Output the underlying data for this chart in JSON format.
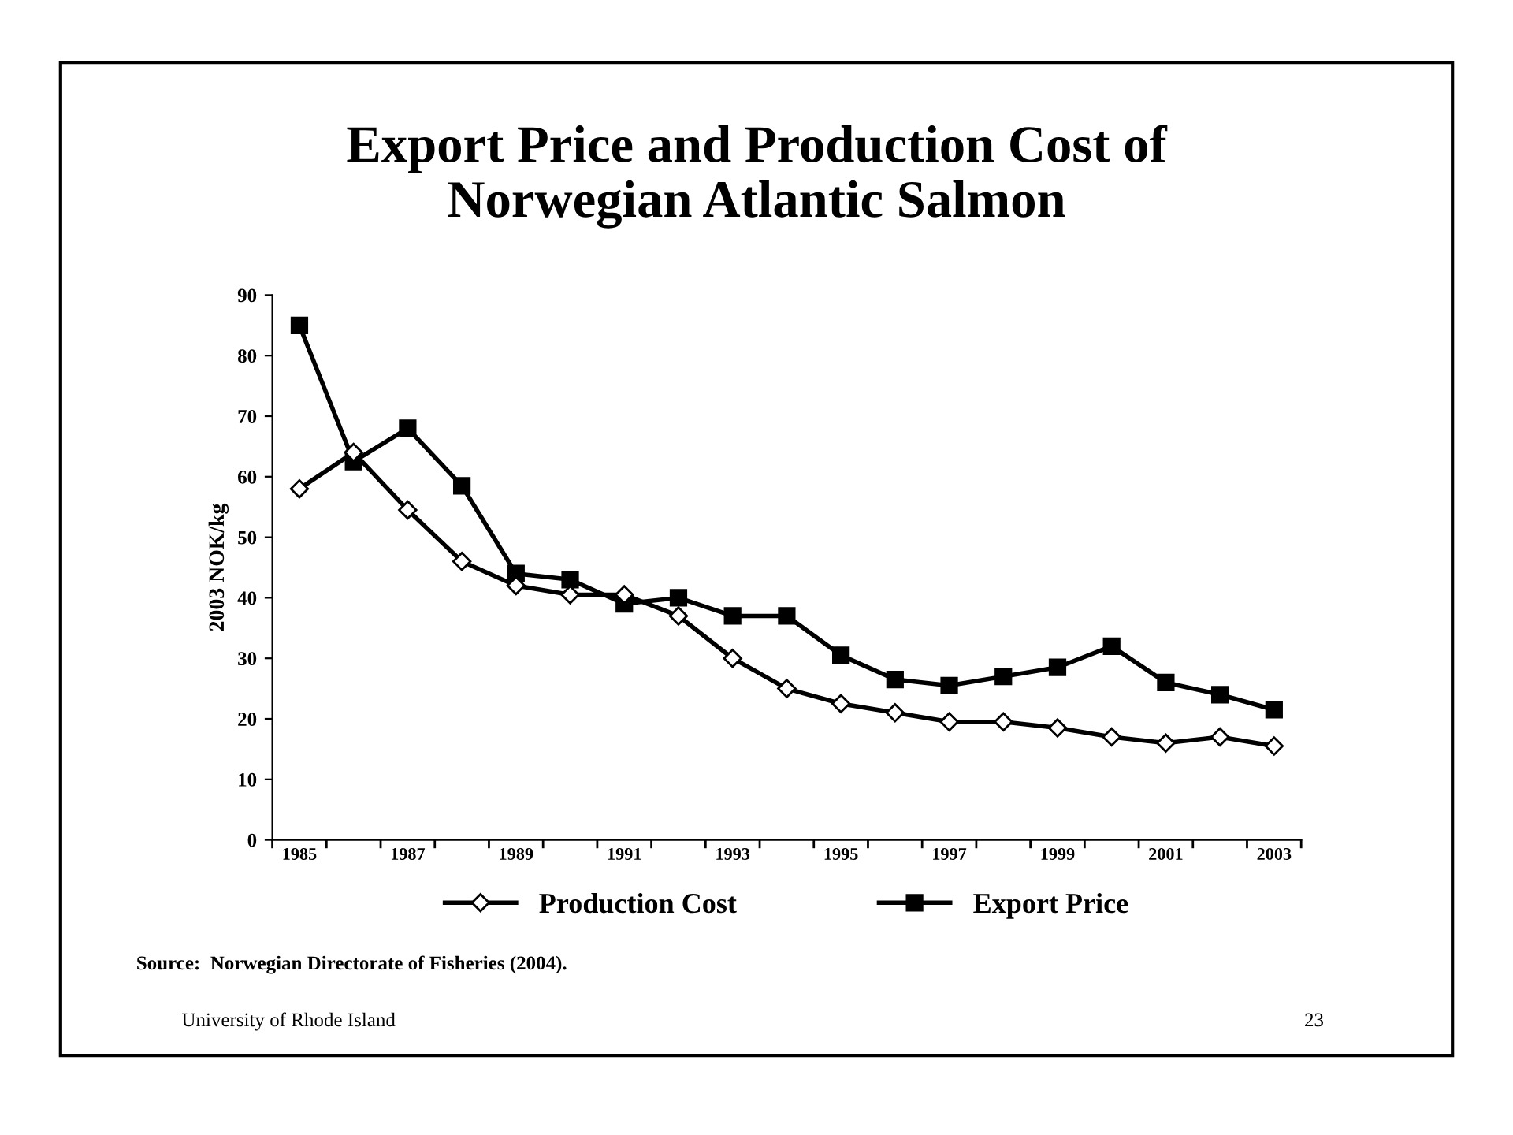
{
  "chart_data": {
    "type": "line",
    "title": "Export Price and Production Cost of\nNorwegian Atlantic Salmon",
    "ylabel": "2003 NOK/kg",
    "categories": [
      "1985",
      null,
      "1987",
      null,
      "1989",
      null,
      "1991",
      null,
      "1993",
      null,
      "1995",
      null,
      "1997",
      null,
      "1999",
      null,
      "2001",
      null,
      "2003"
    ],
    "series": [
      {
        "name": "Production Cost",
        "color": "#000000",
        "marker": "diamond",
        "values": [
          58,
          64,
          54.5,
          46,
          42,
          40.5,
          40.5,
          37,
          30,
          25,
          22.5,
          21,
          19.5,
          19.5,
          18.5,
          17,
          16,
          17,
          15.5
        ]
      },
      {
        "name": "Export Price",
        "color": "#000000",
        "marker": "square",
        "values": [
          85,
          62.5,
          68,
          58.5,
          44,
          43,
          39,
          40,
          37,
          37,
          30.5,
          26.5,
          25.5,
          27,
          28.5,
          32,
          26,
          24,
          21.5
        ]
      }
    ],
    "ylim": [
      0,
      90
    ],
    "yticks": [
      0,
      10,
      20,
      30,
      40,
      50,
      60,
      70,
      80,
      90
    ],
    "grid": false,
    "legend": "bottom",
    "line_style": "solid",
    "annotations": [
      "Source:  Norwegian Directorate of Fisheries (2004).",
      "University of Rhode Island",
      "23"
    ]
  }
}
